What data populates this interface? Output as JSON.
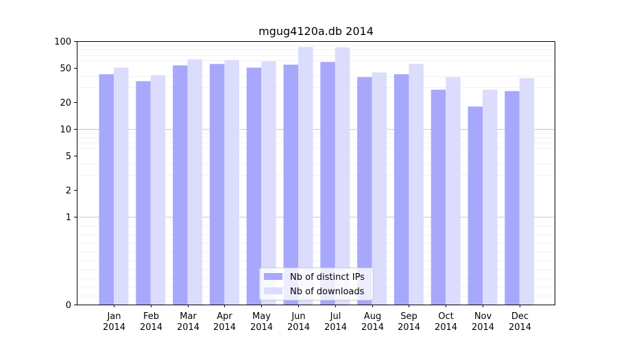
{
  "chart_data": {
    "type": "bar",
    "title": "mgug4120a.db 2014",
    "xlabel": "",
    "ylabel": "",
    "y_scale": "symlog",
    "ylim": [
      0,
      100
    ],
    "y_ticks": [
      0,
      1,
      2,
      5,
      10,
      20,
      50,
      100
    ],
    "y_tick_labels": [
      "0",
      "1",
      "2",
      "5",
      "10",
      "20",
      "50",
      "100"
    ],
    "grid": "horizontal",
    "legend_placement": "bottom-center",
    "categories": [
      "Jan\n2014",
      "Feb\n2014",
      "Mar\n2014",
      "Apr\n2014",
      "May\n2014",
      "Jun\n2014",
      "Jul\n2014",
      "Aug\n2014",
      "Sep\n2014",
      "Oct\n2014",
      "Nov\n2014",
      "Dec\n2014"
    ],
    "series": [
      {
        "name": "Nb of distinct IPs",
        "color": "#a7a7fb",
        "values": [
          42,
          35,
          53,
          55,
          50,
          54,
          58,
          39,
          42,
          28,
          18,
          27
        ]
      },
      {
        "name": "Nb of downloads",
        "color": "#dcdcfd",
        "values": [
          50,
          41,
          62,
          61,
          59,
          86,
          85,
          44,
          55,
          39,
          28,
          38
        ]
      }
    ]
  }
}
